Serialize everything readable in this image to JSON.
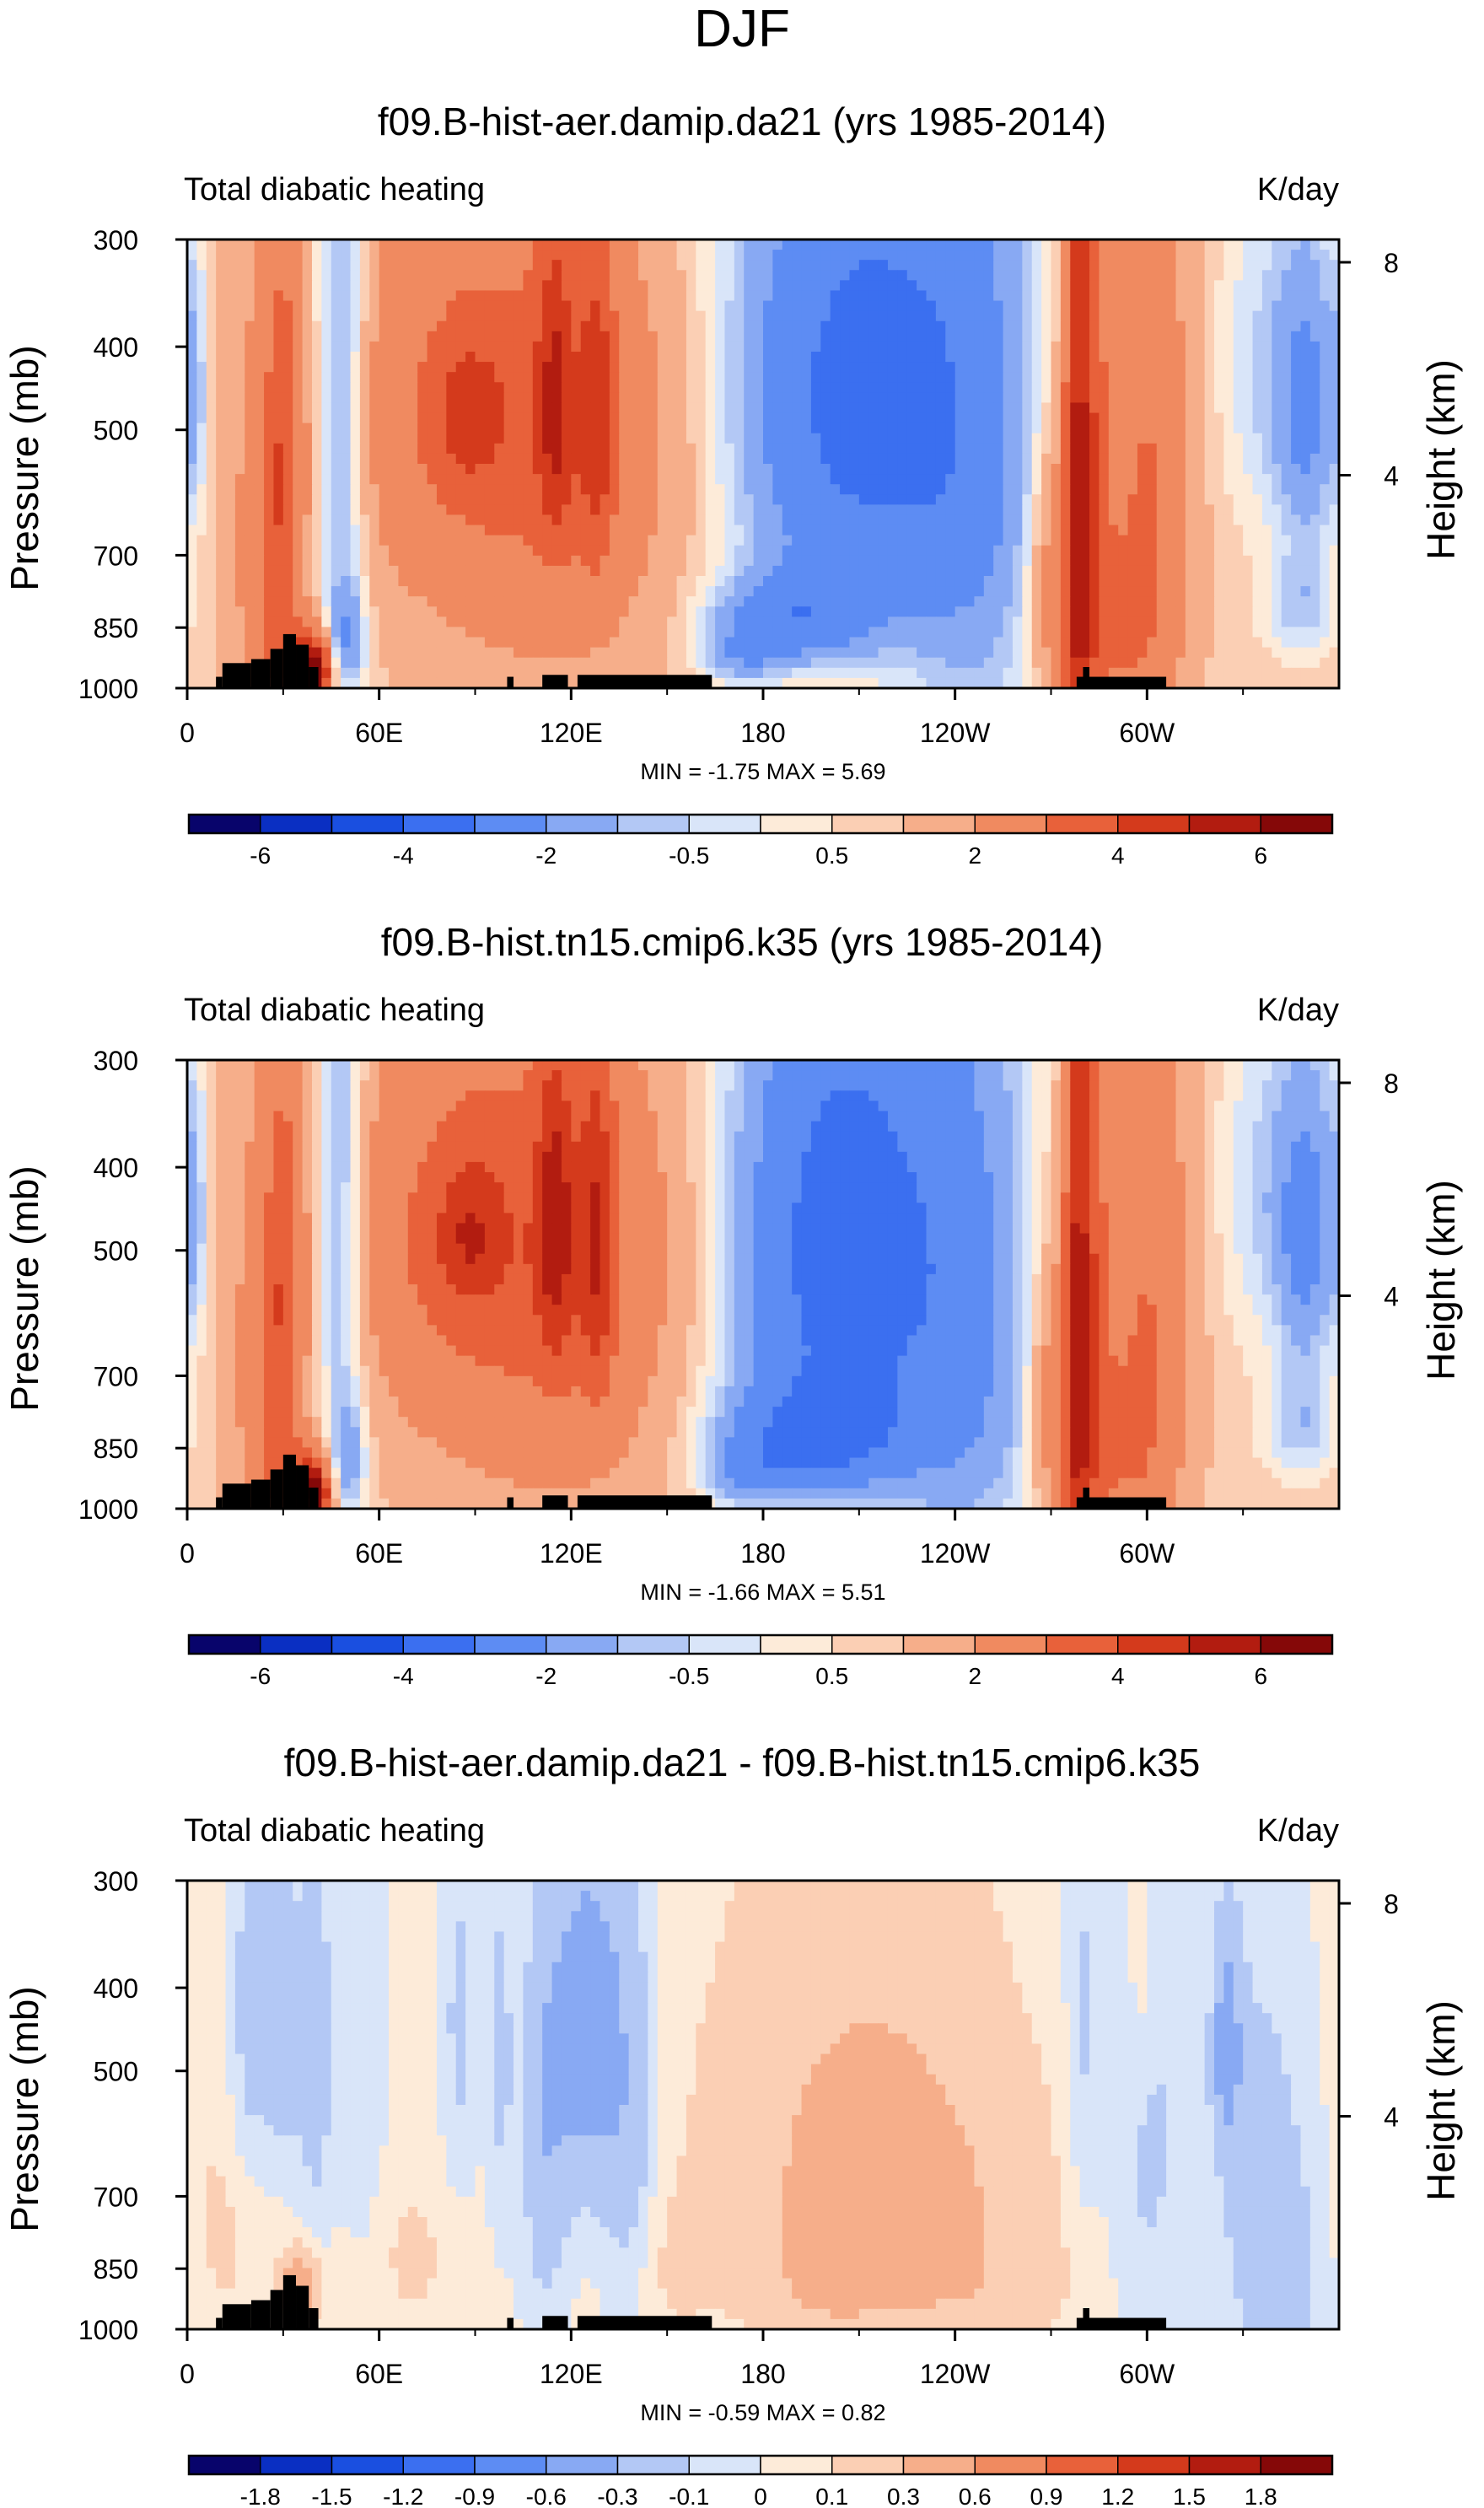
{
  "page": {
    "title": "DJF"
  },
  "colors": {
    "abs_palette": [
      "#08046b",
      "#0a2fc2",
      "#1a4fe0",
      "#3b6ff0",
      "#5d8cf3",
      "#88a9f3",
      "#b3c8f5",
      "#d9e5f9",
      "#fdebd9",
      "#fbcfb4",
      "#f6ae8a",
      "#f08a60",
      "#e8613a",
      "#d43a1c",
      "#b21c10",
      "#850808"
    ],
    "diff_palette": [
      "#08046b",
      "#0a2fc2",
      "#1a4fe0",
      "#3b6ff0",
      "#5d8cf3",
      "#88a9f3",
      "#b3c8f5",
      "#d9e5f9",
      "#fdebd9",
      "#fbcfb4",
      "#f6ae8a",
      "#f08a60",
      "#e8613a",
      "#d43a1c",
      "#b21c10",
      "#850808"
    ],
    "topography": "#000000"
  },
  "chart_data": [
    {
      "type": "heatmap",
      "title": "f09.B-hist-aer.damip.da21 (yrs 1985-2014)",
      "left_label": "Total diabatic heating",
      "right_label": "K/day",
      "ylabel": "Pressure (mb)",
      "ylabel_right": "Height (km)",
      "x_ticks": [
        "0",
        "60E",
        "120E",
        "180",
        "120W",
        "60W"
      ],
      "x_tick_values": [
        0,
        60,
        120,
        180,
        240,
        300
      ],
      "xlim": [
        0,
        360
      ],
      "y_ticks": [
        "300",
        "400",
        "500",
        "700",
        "850",
        "1000"
      ],
      "y_tick_values": [
        300,
        400,
        500,
        700,
        850,
        1000
      ],
      "ylim": [
        1000,
        300
      ],
      "height_ticks": [
        "8",
        "4"
      ],
      "height_tick_values": [
        8,
        4
      ],
      "min_max": "MIN =  -1.75  MAX =  5.69",
      "min": -1.75,
      "max": 5.69,
      "colorbar_labels": [
        "-6",
        "-4",
        "-2",
        "-0.5",
        "0.5",
        "2",
        "4",
        "6"
      ],
      "colorbar_levels": [
        -6,
        -5,
        -4,
        -3,
        -2,
        -1,
        -0.5,
        -0.25,
        0,
        0.25,
        0.5,
        1,
        2,
        3,
        4,
        5,
        6
      ],
      "field": {
        "base": 0.4,
        "blobs": [
          {
            "lon": 48,
            "p": 470,
            "slon": 6,
            "sp": 260,
            "amp": -1.6
          },
          {
            "lon": 50,
            "p": 880,
            "slon": 4,
            "sp": 90,
            "amp": -1.2
          },
          {
            "lon": 25,
            "p": 760,
            "slon": 8,
            "sp": 350,
            "amp": 1.0
          },
          {
            "lon": 35,
            "p": 940,
            "slon": 6,
            "sp": 70,
            "amp": 2.2
          },
          {
            "lon": 40,
            "p": 960,
            "slon": 3,
            "sp": 50,
            "amp": 4.5
          },
          {
            "lon": 30,
            "p": 570,
            "slon": 4,
            "sp": 220,
            "amp": 1.8
          },
          {
            "lon": 100,
            "p": 480,
            "slon": 35,
            "sp": 180,
            "amp": 2.1
          },
          {
            "lon": 88,
            "p": 480,
            "slon": 7,
            "sp": 60,
            "amp": 1.5
          },
          {
            "lon": 115,
            "p": 460,
            "slon": 4,
            "sp": 140,
            "amp": 2.2
          },
          {
            "lon": 128,
            "p": 480,
            "slon": 4,
            "sp": 160,
            "amp": 2.0
          },
          {
            "lon": 113,
            "p": 820,
            "slon": 30,
            "sp": 160,
            "amp": 0.6
          },
          {
            "lon": 210,
            "p": 460,
            "slon": 28,
            "sp": 230,
            "amp": -2.8
          },
          {
            "lon": 190,
            "p": 830,
            "slon": 18,
            "sp": 70,
            "amp": -1.8
          },
          {
            "lon": 173,
            "p": 920,
            "slon": 9,
            "sp": 50,
            "amp": -1.0
          },
          {
            "lon": 245,
            "p": 650,
            "slon": 16,
            "sp": 400,
            "amp": -1.0
          },
          {
            "lon": 278,
            "p": 650,
            "slon": 3,
            "sp": 400,
            "amp": 3.3
          },
          {
            "lon": 283,
            "p": 600,
            "slon": 4,
            "sp": 350,
            "amp": 2.0
          },
          {
            "lon": 270,
            "p": 740,
            "slon": 5,
            "sp": 200,
            "amp": 1.2
          },
          {
            "lon": 300,
            "p": 620,
            "slon": 9,
            "sp": 300,
            "amp": 1.7
          },
          {
            "lon": 290,
            "p": 870,
            "slon": 9,
            "sp": 140,
            "amp": 1.0
          },
          {
            "lon": 350,
            "p": 470,
            "slon": 7,
            "sp": 140,
            "amp": -1.6
          },
          {
            "lon": 348,
            "p": 800,
            "slon": 8,
            "sp": 80,
            "amp": -0.8
          },
          {
            "lon": 2,
            "p": 450,
            "slon": 3,
            "sp": 120,
            "amp": -0.8
          },
          {
            "lon": 335,
            "p": 420,
            "slon": 9,
            "sp": 150,
            "amp": -0.6
          }
        ]
      }
    },
    {
      "type": "heatmap",
      "title": "f09.B-hist.tn15.cmip6.k35 (yrs 1985-2014)",
      "left_label": "Total diabatic heating",
      "right_label": "K/day",
      "ylabel": "Pressure (mb)",
      "ylabel_right": "Height (km)",
      "x_ticks": [
        "0",
        "60E",
        "120E",
        "180",
        "120W",
        "60W"
      ],
      "x_tick_values": [
        0,
        60,
        120,
        180,
        240,
        300
      ],
      "xlim": [
        0,
        360
      ],
      "y_ticks": [
        "300",
        "400",
        "500",
        "700",
        "850",
        "1000"
      ],
      "y_tick_values": [
        300,
        400,
        500,
        700,
        850,
        1000
      ],
      "ylim": [
        1000,
        300
      ],
      "height_ticks": [
        "8",
        "4"
      ],
      "height_tick_values": [
        8,
        4
      ],
      "min_max": "MIN =  -1.66  MAX =  5.51",
      "min": -1.66,
      "max": 5.51,
      "colorbar_labels": [
        "-6",
        "-4",
        "-2",
        "-0.5",
        "0.5",
        "2",
        "4",
        "6"
      ],
      "colorbar_levels": [
        -6,
        -5,
        -4,
        -3,
        -2,
        -1,
        -0.5,
        -0.25,
        0,
        0.25,
        0.5,
        1,
        2,
        3,
        4,
        5,
        6
      ],
      "field": {
        "base": 0.4,
        "blobs": [
          {
            "lon": 48,
            "p": 470,
            "slon": 6,
            "sp": 260,
            "amp": -1.5
          },
          {
            "lon": 50,
            "p": 880,
            "slon": 4,
            "sp": 90,
            "amp": -1.1
          },
          {
            "lon": 25,
            "p": 760,
            "slon": 8,
            "sp": 350,
            "amp": 1.0
          },
          {
            "lon": 35,
            "p": 940,
            "slon": 6,
            "sp": 70,
            "amp": 2.1
          },
          {
            "lon": 40,
            "p": 960,
            "slon": 3,
            "sp": 50,
            "amp": 4.3
          },
          {
            "lon": 30,
            "p": 570,
            "slon": 4,
            "sp": 220,
            "amp": 1.7
          },
          {
            "lon": 100,
            "p": 480,
            "slon": 35,
            "sp": 180,
            "amp": 2.3
          },
          {
            "lon": 88,
            "p": 480,
            "slon": 7,
            "sp": 60,
            "amp": 1.6
          },
          {
            "lon": 115,
            "p": 460,
            "slon": 4,
            "sp": 140,
            "amp": 2.4
          },
          {
            "lon": 128,
            "p": 480,
            "slon": 4,
            "sp": 160,
            "amp": 2.2
          },
          {
            "lon": 113,
            "p": 820,
            "slon": 30,
            "sp": 160,
            "amp": 0.7
          },
          {
            "lon": 205,
            "p": 500,
            "slon": 25,
            "sp": 260,
            "amp": -3.0
          },
          {
            "lon": 195,
            "p": 830,
            "slon": 20,
            "sp": 80,
            "amp": -2.0
          },
          {
            "lon": 175,
            "p": 920,
            "slon": 9,
            "sp": 50,
            "amp": -1.0
          },
          {
            "lon": 245,
            "p": 650,
            "slon": 16,
            "sp": 400,
            "amp": -1.1
          },
          {
            "lon": 278,
            "p": 650,
            "slon": 3,
            "sp": 400,
            "amp": 3.2
          },
          {
            "lon": 283,
            "p": 600,
            "slon": 4,
            "sp": 350,
            "amp": 1.9
          },
          {
            "lon": 270,
            "p": 740,
            "slon": 5,
            "sp": 200,
            "amp": 1.2
          },
          {
            "lon": 300,
            "p": 620,
            "slon": 9,
            "sp": 300,
            "amp": 1.6
          },
          {
            "lon": 290,
            "p": 870,
            "slon": 9,
            "sp": 140,
            "amp": 1.0
          },
          {
            "lon": 350,
            "p": 470,
            "slon": 7,
            "sp": 140,
            "amp": -1.7
          },
          {
            "lon": 348,
            "p": 800,
            "slon": 8,
            "sp": 80,
            "amp": -0.8
          },
          {
            "lon": 2,
            "p": 450,
            "slon": 3,
            "sp": 120,
            "amp": -0.8
          },
          {
            "lon": 335,
            "p": 420,
            "slon": 9,
            "sp": 150,
            "amp": -0.6
          }
        ]
      }
    },
    {
      "type": "heatmap",
      "title": "f09.B-hist-aer.damip.da21 - f09.B-hist.tn15.cmip6.k35",
      "left_label": "Total diabatic heating",
      "right_label": "K/day",
      "ylabel": "Pressure (mb)",
      "ylabel_right": "Height (km)",
      "x_ticks": [
        "0",
        "60E",
        "120E",
        "180",
        "120W",
        "60W"
      ],
      "x_tick_values": [
        0,
        60,
        120,
        180,
        240,
        300
      ],
      "xlim": [
        0,
        360
      ],
      "y_ticks": [
        "300",
        "400",
        "500",
        "700",
        "850",
        "1000"
      ],
      "y_tick_values": [
        300,
        400,
        500,
        700,
        850,
        1000
      ],
      "ylim": [
        1000,
        300
      ],
      "height_ticks": [
        "8",
        "4"
      ],
      "height_tick_values": [
        8,
        4
      ],
      "min_max": "MIN =  -0.59  MAX =  0.82",
      "min": -0.59,
      "max": 0.82,
      "colorbar_labels": [
        "-1.8",
        "-1.5",
        "-1.2",
        "-0.9",
        "-0.6",
        "-0.3",
        "-0.1",
        "0",
        "0.1",
        "0.3",
        "0.6",
        "0.9",
        "1.2",
        "1.5",
        "1.8"
      ],
      "colorbar_levels": [
        -2.1,
        -1.8,
        -1.5,
        -1.2,
        -0.9,
        -0.6,
        -0.3,
        -0.1,
        0,
        0.1,
        0.3,
        0.6,
        0.9,
        1.2,
        1.5,
        1.8,
        2.1
      ],
      "field": {
        "base": 0.02,
        "blobs": [
          {
            "lon": 125,
            "p": 450,
            "slon": 8,
            "sp": 160,
            "amp": -0.45
          },
          {
            "lon": 112,
            "p": 600,
            "slon": 5,
            "sp": 250,
            "amp": -0.25
          },
          {
            "lon": 138,
            "p": 600,
            "slon": 6,
            "sp": 250,
            "amp": -0.22
          },
          {
            "lon": 20,
            "p": 450,
            "slon": 5,
            "sp": 180,
            "amp": -0.2
          },
          {
            "lon": 30,
            "p": 450,
            "slon": 4,
            "sp": 150,
            "amp": -0.18
          },
          {
            "lon": 40,
            "p": 480,
            "slon": 4,
            "sp": 200,
            "amp": -0.2
          },
          {
            "lon": 55,
            "p": 500,
            "slon": 5,
            "sp": 250,
            "amp": -0.12
          },
          {
            "lon": 85,
            "p": 450,
            "slon": 4,
            "sp": 180,
            "amp": -0.15
          },
          {
            "lon": 98,
            "p": 480,
            "slon": 3,
            "sp": 200,
            "amp": -0.15
          },
          {
            "lon": 210,
            "p": 620,
            "slon": 32,
            "sp": 280,
            "amp": 0.32
          },
          {
            "lon": 235,
            "p": 760,
            "slon": 25,
            "sp": 180,
            "amp": 0.15
          },
          {
            "lon": 200,
            "p": 850,
            "slon": 12,
            "sp": 100,
            "amp": 0.18
          },
          {
            "lon": 35,
            "p": 900,
            "slon": 4,
            "sp": 60,
            "amp": 0.5
          },
          {
            "lon": 10,
            "p": 760,
            "slon": 12,
            "sp": 200,
            "amp": 0.12
          },
          {
            "lon": 325,
            "p": 470,
            "slon": 3,
            "sp": 90,
            "amp": -0.45
          },
          {
            "lon": 300,
            "p": 600,
            "slon": 9,
            "sp": 300,
            "amp": -0.15
          },
          {
            "lon": 335,
            "p": 700,
            "slon": 10,
            "sp": 300,
            "amp": -0.18
          },
          {
            "lon": 350,
            "p": 850,
            "slon": 10,
            "sp": 200,
            "amp": -0.12
          },
          {
            "lon": 280,
            "p": 450,
            "slon": 4,
            "sp": 200,
            "amp": -0.15
          },
          {
            "lon": 298,
            "p": 350,
            "slon": 3,
            "sp": 120,
            "amp": 0.12
          },
          {
            "lon": 250,
            "p": 900,
            "slon": 20,
            "sp": 80,
            "amp": 0.08
          },
          {
            "lon": 70,
            "p": 820,
            "slon": 12,
            "sp": 150,
            "amp": 0.1
          },
          {
            "lon": 150,
            "p": 850,
            "slon": 10,
            "sp": 120,
            "amp": 0.08
          }
        ]
      }
    }
  ],
  "topography": [
    {
      "lon0": 9,
      "lon1": 11,
      "p": 970
    },
    {
      "lon0": 11,
      "lon1": 20,
      "p": 935
    },
    {
      "lon0": 20,
      "lon1": 26,
      "p": 925
    },
    {
      "lon0": 26,
      "lon1": 30,
      "p": 900
    },
    {
      "lon0": 30,
      "lon1": 34,
      "p": 865
    },
    {
      "lon0": 34,
      "lon1": 38,
      "p": 890
    },
    {
      "lon0": 38,
      "lon1": 41,
      "p": 945
    },
    {
      "lon0": 100,
      "lon1": 102,
      "p": 970
    },
    {
      "lon0": 111,
      "lon1": 119,
      "p": 965
    },
    {
      "lon0": 122,
      "lon1": 164,
      "p": 965
    },
    {
      "lon0": 280,
      "lon1": 282,
      "p": 945
    },
    {
      "lon0": 278,
      "lon1": 306,
      "p": 970
    }
  ]
}
